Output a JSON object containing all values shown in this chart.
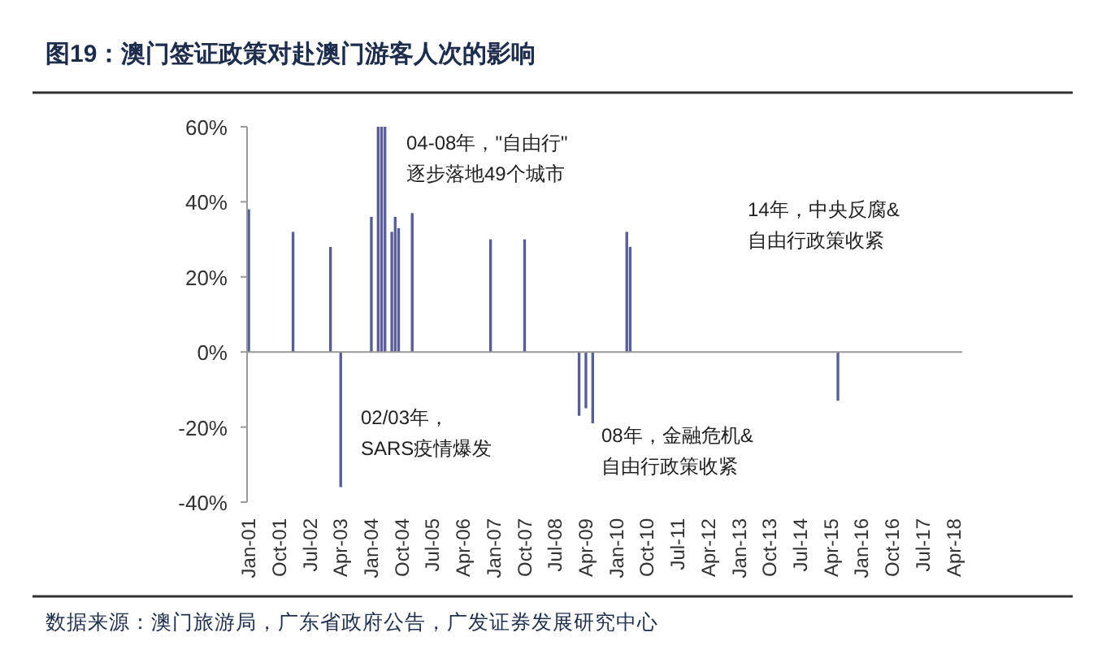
{
  "chart_data": {
    "type": "bar",
    "title": "图19：澳门签证政策对赴澳门游客人次的影响",
    "categories": [
      "Jan-01",
      null,
      null,
      null,
      null,
      null,
      null,
      null,
      null,
      "Oct-01",
      null,
      null,
      null,
      null,
      null,
      null,
      null,
      null,
      "Jul-02",
      null,
      null,
      null,
      null,
      null,
      null,
      null,
      null,
      "Apr-03",
      null,
      null,
      null,
      null,
      null,
      null,
      null,
      null,
      "Jan-04",
      null,
      null,
      null,
      null,
      null,
      null,
      null,
      null,
      "Oct-04",
      null,
      null,
      null,
      null,
      null,
      null,
      null,
      null,
      "Jul-05",
      null,
      null,
      null,
      null,
      null,
      null,
      null,
      null,
      "Apr-06",
      null,
      null,
      null,
      null,
      null,
      null,
      null,
      null,
      "Jan-07",
      null,
      null,
      null,
      null,
      null,
      null,
      null,
      null,
      "Oct-07",
      null,
      null,
      null,
      null,
      null,
      null,
      null,
      null,
      "Jul-08",
      null,
      null,
      null,
      null,
      null,
      null,
      null,
      null,
      "Apr-09",
      null,
      null,
      null,
      null,
      null,
      null,
      null,
      null,
      "Jan-10",
      null,
      null,
      null,
      null,
      null,
      null,
      null,
      null,
      "Oct-10",
      null,
      null,
      null,
      null,
      null,
      null,
      null,
      null,
      "Jul-11",
      null,
      null,
      null,
      null,
      null,
      null,
      null,
      null,
      "Apr-12",
      null,
      null,
      null,
      null,
      null,
      null,
      null,
      null,
      "Jan-13",
      null,
      null,
      null,
      null,
      null,
      null,
      null,
      null,
      "Oct-13",
      null,
      null,
      null,
      null,
      null,
      null,
      null,
      null,
      "Jul-14",
      null,
      null,
      null,
      null,
      null,
      null,
      null,
      null,
      "Apr-15",
      null,
      null,
      null,
      null,
      null,
      null,
      null,
      null,
      "Jan-16",
      null,
      null,
      null,
      null,
      null,
      null,
      null,
      null,
      "Oct-16",
      null,
      null,
      null,
      null,
      null,
      null,
      null,
      null,
      "Jul-17",
      null,
      null,
      null,
      null,
      null,
      null,
      null,
      null,
      "Apr-18",
      null,
      null
    ],
    "values": [
      38,
      null,
      null,
      null,
      null,
      null,
      null,
      null,
      null,
      null,
      null,
      null,
      null,
      32,
      null,
      null,
      null,
      null,
      null,
      null,
      null,
      null,
      null,
      null,
      28,
      null,
      null,
      -36,
      null,
      null,
      null,
      null,
      null,
      null,
      null,
      null,
      36,
      null,
      60,
      60,
      60,
      null,
      32,
      36,
      33,
      null,
      null,
      null,
      37,
      null,
      null,
      null,
      null,
      null,
      null,
      null,
      null,
      null,
      null,
      null,
      null,
      null,
      null,
      null,
      null,
      null,
      null,
      null,
      null,
      null,
      null,
      30,
      null,
      null,
      null,
      null,
      null,
      null,
      null,
      null,
      null,
      30,
      null,
      null,
      null,
      null,
      null,
      null,
      null,
      null,
      null,
      null,
      null,
      null,
      null,
      null,
      null,
      -17,
      null,
      -15,
      null,
      -19,
      null,
      null,
      null,
      null,
      null,
      null,
      null,
      null,
      null,
      32,
      28,
      null,
      null,
      null,
      null,
      null,
      null,
      null,
      null,
      null,
      null,
      null,
      null,
      null,
      null,
      null,
      null,
      null,
      null,
      null,
      null,
      null,
      null,
      null,
      null,
      null,
      null,
      null,
      null,
      null,
      null,
      null,
      null,
      null,
      null,
      null,
      null,
      null,
      null,
      null,
      null,
      null,
      null,
      null,
      null,
      null,
      null,
      null,
      null,
      null,
      null,
      null,
      null,
      null,
      null,
      null,
      null,
      null,
      null,
      null,
      null,
      -13,
      null,
      null,
      null,
      null,
      null,
      null,
      null,
      null,
      null,
      null,
      null,
      null,
      null,
      null,
      null,
      null,
      null,
      null,
      null,
      null,
      null,
      null,
      null,
      null,
      null,
      null,
      null,
      null,
      null,
      null,
      null,
      null,
      null,
      null,
      null,
      null
    ],
    "color": "#595e96",
    "ylim": [
      -40,
      60
    ],
    "yticks": [
      {
        "value": 60,
        "label": "60%"
      },
      {
        "value": 40,
        "label": "40%"
      },
      {
        "value": 20,
        "label": "20%"
      },
      {
        "value": 0,
        "label": "0%"
      },
      {
        "value": -20,
        "label": "-20%"
      },
      {
        "value": -40,
        "label": "-40%"
      }
    ],
    "annotations": [
      "04-08年，\"自由行\"\n逐步落地49个城市",
      "14年，中央反腐&\n自由行政策收紧",
      "02/03年，\nSARS疫情爆发",
      "08年，金融危机&\n自由行政策收紧",
      "数据来源：澳门旅游局，广东省政府公告，广发证券发展研究中心"
    ]
  }
}
